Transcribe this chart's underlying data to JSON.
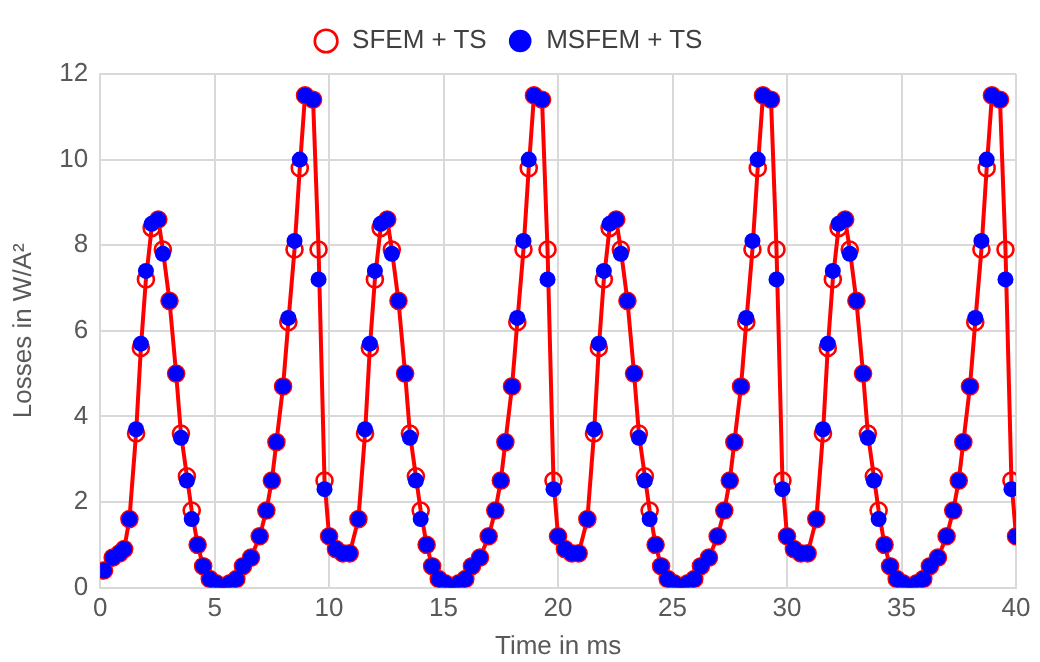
{
  "chart_data": {
    "type": "line",
    "xlabel": "Time in ms",
    "ylabel": "Losses in W/A²",
    "x": [
      0.17,
      0.55,
      0.85,
      1.05,
      1.28,
      1.57,
      1.78,
      2.0,
      2.25,
      2.54,
      2.74,
      3.03,
      3.32,
      3.53,
      3.79,
      4.0,
      4.26,
      4.5,
      4.79,
      5.07,
      5.36,
      5.66,
      5.95,
      6.24,
      6.59,
      6.97,
      7.26,
      7.5,
      7.7,
      7.99,
      8.22,
      8.49,
      8.72,
      8.95,
      9.3,
      9.54,
      9.8,
      10.0,
      10.3,
      10.6,
      10.9,
      11.28,
      11.57,
      11.78,
      12.0,
      12.25,
      12.54,
      12.74,
      13.03,
      13.32,
      13.53,
      13.79,
      14.0,
      14.26,
      14.5,
      14.79,
      15.07,
      15.36,
      15.66,
      15.95,
      16.24,
      16.59,
      16.97,
      17.26,
      17.5,
      17.7,
      17.99,
      18.22,
      18.49,
      18.72,
      18.95,
      19.3,
      19.54,
      19.8,
      20.0,
      20.3,
      20.6,
      20.9,
      21.28,
      21.57,
      21.78,
      22.0,
      22.25,
      22.54,
      22.74,
      23.03,
      23.32,
      23.53,
      23.79,
      24.0,
      24.26,
      24.5,
      24.79,
      25.07,
      25.36,
      25.66,
      25.95,
      26.24,
      26.59,
      26.97,
      27.26,
      27.5,
      27.7,
      27.99,
      28.22,
      28.49,
      28.72,
      28.95,
      29.3,
      29.54,
      29.8,
      30.0,
      30.3,
      30.6,
      30.9,
      31.28,
      31.57,
      31.78,
      32.0,
      32.25,
      32.54,
      32.74,
      33.03,
      33.32,
      33.53,
      33.79,
      34.0,
      34.26,
      34.5,
      34.79,
      35.07,
      35.36,
      35.66,
      35.95,
      36.24,
      36.59,
      36.97,
      37.26,
      37.5,
      37.7,
      37.99,
      38.22,
      38.49,
      38.72,
      38.95,
      39.3,
      39.54,
      39.8,
      40.0
    ],
    "series": [
      {
        "name": "SFEM + TS",
        "type": "line",
        "color": "#ff0000",
        "values": [
          0.4,
          0.7,
          0.8,
          0.9,
          1.6,
          3.6,
          5.6,
          7.2,
          8.4,
          8.6,
          7.9,
          6.7,
          5.0,
          3.6,
          2.6,
          1.8,
          1.0,
          0.5,
          0.2,
          0.1,
          0.0,
          0.1,
          0.2,
          0.5,
          0.7,
          1.2,
          1.8,
          2.5,
          3.4,
          4.7,
          6.2,
          7.9,
          9.8,
          11.5,
          11.4,
          7.9,
          2.5,
          1.2,
          0.9,
          0.8,
          0.8,
          1.6,
          3.6,
          5.6,
          7.2,
          8.4,
          8.6,
          7.9,
          6.7,
          5.0,
          3.6,
          2.6,
          1.8,
          1.0,
          0.5,
          0.2,
          0.1,
          0.0,
          0.1,
          0.2,
          0.5,
          0.7,
          1.2,
          1.8,
          2.5,
          3.4,
          4.7,
          6.2,
          7.9,
          9.8,
          11.5,
          11.4,
          7.9,
          2.5,
          1.2,
          0.9,
          0.8,
          0.8,
          1.6,
          3.6,
          5.6,
          7.2,
          8.4,
          8.6,
          7.9,
          6.7,
          5.0,
          3.6,
          2.6,
          1.8,
          1.0,
          0.5,
          0.2,
          0.1,
          0.0,
          0.1,
          0.2,
          0.5,
          0.7,
          1.2,
          1.8,
          2.5,
          3.4,
          4.7,
          6.2,
          7.9,
          9.8,
          11.5,
          11.4,
          7.9,
          2.5,
          1.2,
          0.9,
          0.8,
          0.8,
          1.6,
          3.6,
          5.6,
          7.2,
          8.4,
          8.6,
          7.9,
          6.7,
          5.0,
          3.6,
          2.6,
          1.8,
          1.0,
          0.5,
          0.2,
          0.1,
          0.0,
          0.1,
          0.2,
          0.5,
          0.7,
          1.2,
          1.8,
          2.5,
          3.4,
          4.7,
          6.2,
          7.9,
          9.8,
          11.5,
          11.4,
          7.9,
          2.5,
          1.2
        ]
      },
      {
        "name": "MSFEM + TS",
        "type": "scatter",
        "color": "#0000ff",
        "values": [
          0.4,
          0.7,
          0.8,
          0.9,
          1.6,
          3.7,
          5.7,
          7.4,
          8.5,
          8.6,
          7.8,
          6.7,
          5.0,
          3.5,
          2.5,
          1.6,
          1.0,
          0.5,
          0.2,
          0.1,
          0.0,
          0.1,
          0.2,
          0.5,
          0.7,
          1.2,
          1.8,
          2.5,
          3.4,
          4.7,
          6.3,
          8.1,
          10.0,
          11.5,
          11.4,
          7.2,
          2.3,
          1.2,
          0.9,
          0.8,
          0.8,
          1.6,
          3.7,
          5.7,
          7.4,
          8.5,
          8.6,
          7.8,
          6.7,
          5.0,
          3.5,
          2.5,
          1.6,
          1.0,
          0.5,
          0.2,
          0.1,
          0.0,
          0.1,
          0.2,
          0.5,
          0.7,
          1.2,
          1.8,
          2.5,
          3.4,
          4.7,
          6.3,
          8.1,
          10.0,
          11.5,
          11.4,
          7.2,
          2.3,
          1.2,
          0.9,
          0.8,
          0.8,
          1.6,
          3.7,
          5.7,
          7.4,
          8.5,
          8.6,
          7.8,
          6.7,
          5.0,
          3.5,
          2.5,
          1.6,
          1.0,
          0.5,
          0.2,
          0.1,
          0.0,
          0.1,
          0.2,
          0.5,
          0.7,
          1.2,
          1.8,
          2.5,
          3.4,
          4.7,
          6.3,
          8.1,
          10.0,
          11.5,
          11.4,
          7.2,
          2.3,
          1.2,
          0.9,
          0.8,
          0.8,
          1.6,
          3.7,
          5.7,
          7.4,
          8.5,
          8.6,
          7.8,
          6.7,
          5.0,
          3.5,
          2.5,
          1.6,
          1.0,
          0.5,
          0.2,
          0.1,
          0.0,
          0.1,
          0.2,
          0.5,
          0.7,
          1.2,
          1.8,
          2.5,
          3.4,
          4.7,
          6.3,
          8.1,
          10.0,
          11.5,
          11.4,
          7.2,
          2.3,
          1.2
        ]
      }
    ],
    "xlim": [
      0,
      40
    ],
    "xticks": [
      0,
      5,
      10,
      15,
      20,
      25,
      30,
      35,
      40
    ],
    "ylim": [
      0,
      12
    ],
    "yticks": [
      0,
      2,
      4,
      6,
      8,
      10,
      12
    ],
    "grid": true,
    "legend": "top",
    "marker": "circle"
  }
}
